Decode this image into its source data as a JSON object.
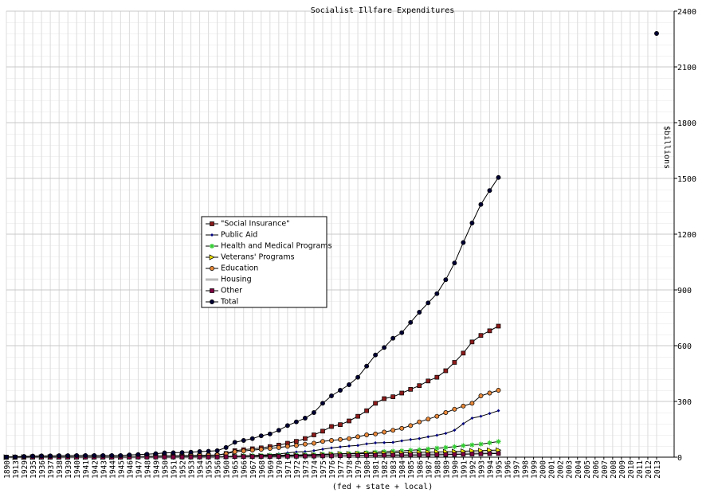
{
  "chart_data": {
    "type": "line",
    "title": "Socialist Illfare Expenditures",
    "x_label": "(fed + state + local)",
    "y_label": "$billions",
    "categories": [
      "1890",
      "1913",
      "1929",
      "1935",
      "1936",
      "1937",
      "1938",
      "1939",
      "1940",
      "1941",
      "1942",
      "1943",
      "1944",
      "1945",
      "1946",
      "1947",
      "1948",
      "1949",
      "1950",
      "1951",
      "1952",
      "1953",
      "1954",
      "1955",
      "1956",
      "1960",
      "1965",
      "1966",
      "1967",
      "1968",
      "1969",
      "1970",
      "1971",
      "1972",
      "1973",
      "1974",
      "1975",
      "1976",
      "1977",
      "1978",
      "1979",
      "1980",
      "1981",
      "1982",
      "1983",
      "1984",
      "1985",
      "1986",
      "1987",
      "1988",
      "1989",
      "1990",
      "1991",
      "1992",
      "1993",
      "1994",
      "1995",
      "1996",
      "1997",
      "1998",
      "1999",
      "2000",
      "2001",
      "2002",
      "2003",
      "2004",
      "2005",
      "2006",
      "2007",
      "2008",
      "2009",
      "2010",
      "2011",
      "2012",
      "2013"
    ],
    "ylim": [
      0,
      2400
    ],
    "yticks": [
      0,
      300,
      600,
      900,
      1200,
      1500,
      1800,
      2100,
      2400
    ],
    "grid": true,
    "series": [
      {
        "name": "\"Social Insurance\"",
        "color": "#8b1a1a",
        "marker": "square",
        "values": [
          0,
          0,
          0.3,
          1,
          1,
          1,
          1.5,
          1.5,
          2,
          2,
          2,
          2,
          2,
          2,
          4,
          4,
          5,
          5,
          5,
          5,
          6,
          7,
          8,
          9,
          10,
          20,
          35,
          40,
          45,
          50,
          57,
          65,
          75,
          85,
          100,
          120,
          140,
          165,
          175,
          195,
          220,
          250,
          290,
          315,
          325,
          345,
          365,
          385,
          410,
          430,
          465,
          510,
          560,
          620,
          655,
          680,
          705,
          null,
          null,
          null,
          null,
          null,
          null,
          null,
          null,
          null,
          null,
          null,
          null,
          null,
          null,
          null,
          null,
          null,
          null
        ]
      },
      {
        "name": "Public Aid",
        "color": "#000080",
        "marker": "diamond",
        "values": [
          0,
          0,
          0,
          3,
          3,
          3,
          3,
          4,
          4,
          4,
          3,
          3,
          1,
          1,
          1,
          2,
          2,
          2,
          2,
          3,
          3,
          3,
          3,
          3,
          3,
          4,
          6,
          8,
          9,
          11,
          13,
          17,
          23,
          28,
          30,
          35,
          43,
          50,
          55,
          60,
          63,
          72,
          77,
          78,
          80,
          88,
          95,
          100,
          110,
          118,
          128,
          145,
          180,
          210,
          220,
          235,
          250,
          null,
          null,
          null,
          null,
          null,
          null,
          null,
          null,
          null,
          null,
          null,
          null,
          null,
          null,
          null,
          null,
          null,
          null
        ]
      },
      {
        "name": "Health and Medical Programs",
        "color": "#33cc33",
        "marker": "star",
        "values": [
          0,
          0,
          0.4,
          0.5,
          0.5,
          0.5,
          0.5,
          0.5,
          0.6,
          0.6,
          0.6,
          0.7,
          0.8,
          0.9,
          1,
          1.5,
          2,
          2,
          2,
          2,
          3,
          3,
          3,
          3,
          4,
          4,
          6,
          7,
          8,
          9,
          10,
          10,
          11,
          12,
          13,
          14,
          16,
          17,
          18,
          20,
          22,
          24,
          27,
          30,
          32,
          34,
          37,
          40,
          44,
          48,
          52,
          56,
          62,
          66,
          70,
          77,
          84,
          null,
          null,
          null,
          null,
          null,
          null,
          null,
          null,
          null,
          null,
          null,
          null,
          null,
          null,
          null,
          null,
          null,
          null
        ]
      },
      {
        "name": "Veterans' Programs",
        "color": "#ffee00",
        "marker": "triangle",
        "values": [
          0,
          0,
          0.6,
          0.6,
          0.6,
          0.6,
          0.6,
          0.6,
          0.6,
          0.6,
          0.6,
          0.6,
          0.7,
          1,
          2,
          4,
          6,
          7,
          7,
          6,
          5,
          5,
          4,
          4,
          4,
          5,
          6,
          6,
          6,
          7,
          7,
          8,
          9,
          10,
          11,
          12,
          14,
          16,
          18,
          18,
          19,
          20,
          21,
          22,
          23,
          24,
          25,
          26,
          27,
          28,
          29,
          30,
          32,
          34,
          35,
          37,
          38,
          null,
          null,
          null,
          null,
          null,
          null,
          null,
          null,
          null,
          null,
          null,
          null,
          null,
          null,
          null,
          null,
          null,
          null
        ]
      },
      {
        "name": "Education",
        "color": "#e8883a",
        "marker": "circle",
        "values": [
          1,
          1,
          3,
          3,
          3,
          3,
          3,
          3,
          3,
          3,
          3,
          3,
          3,
          3,
          4,
          5,
          6,
          7,
          8,
          8,
          9,
          9,
          10,
          11,
          12,
          18,
          29,
          33,
          38,
          42,
          47,
          52,
          58,
          63,
          70,
          75,
          85,
          90,
          95,
          100,
          110,
          120,
          125,
          135,
          145,
          155,
          170,
          190,
          205,
          220,
          240,
          258,
          275,
          290,
          330,
          345,
          360,
          null,
          null,
          null,
          null,
          null,
          null,
          null,
          null,
          null,
          null,
          null,
          null,
          null,
          null,
          null,
          null,
          null,
          null
        ]
      },
      {
        "name": "Housing",
        "color": "#bbbbbb",
        "values": [
          0,
          0,
          0,
          0,
          0,
          0,
          0,
          0,
          0,
          0,
          0,
          0,
          0,
          0,
          0,
          0,
          0,
          0,
          0.1,
          0.1,
          0.1,
          0.1,
          0.1,
          0.1,
          0.1,
          0.2,
          0.3,
          0.4,
          0.5,
          0.6,
          0.7,
          0.7,
          1,
          1,
          1.5,
          2,
          3,
          3.5,
          4,
          5,
          6,
          7,
          8,
          9,
          10,
          11,
          12,
          13,
          14,
          15,
          16,
          18,
          19,
          21,
          22,
          24,
          25,
          null,
          null,
          null,
          null,
          null,
          null,
          null,
          null,
          null,
          null,
          null,
          null,
          null,
          null,
          null,
          null,
          null,
          null
        ]
      },
      {
        "name": "Other",
        "color": "#800040",
        "marker": "square",
        "values": [
          0,
          0,
          0.1,
          0.3,
          0.3,
          0.3,
          0.3,
          0.3,
          0.3,
          0.3,
          0.3,
          0.3,
          0.3,
          0.3,
          0.4,
          0.5,
          0.6,
          0.6,
          0.7,
          0.7,
          0.8,
          0.9,
          1,
          1,
          1,
          2,
          3,
          3,
          3,
          4,
          4,
          4,
          5,
          5,
          6,
          6,
          7,
          7,
          8,
          8,
          9,
          9,
          10,
          10,
          11,
          11,
          12,
          12,
          13,
          13,
          14,
          15,
          16,
          17,
          18,
          19,
          20,
          null,
          null,
          null,
          null,
          null,
          null,
          null,
          null,
          null,
          null,
          null,
          null,
          null,
          null,
          null,
          null,
          null,
          null
        ]
      },
      {
        "name": "Total",
        "color": "#000033",
        "marker": "circle",
        "values": [
          1,
          2,
          4,
          6,
          7,
          7,
          8,
          8,
          9,
          9,
          9,
          9,
          9,
          9,
          12,
          14,
          16,
          19,
          23,
          24,
          25,
          27,
          30,
          32,
          35,
          52,
          80,
          90,
          100,
          115,
          125,
          145,
          170,
          190,
          210,
          240,
          290,
          330,
          360,
          390,
          430,
          490,
          550,
          590,
          640,
          670,
          725,
          780,
          830,
          880,
          955,
          1045,
          1155,
          1260,
          1360,
          1435,
          1505,
          null,
          null,
          null,
          null,
          null,
          null,
          null,
          null,
          null,
          null,
          null,
          null,
          null,
          null,
          null,
          null,
          null,
          2280
        ]
      }
    ]
  }
}
